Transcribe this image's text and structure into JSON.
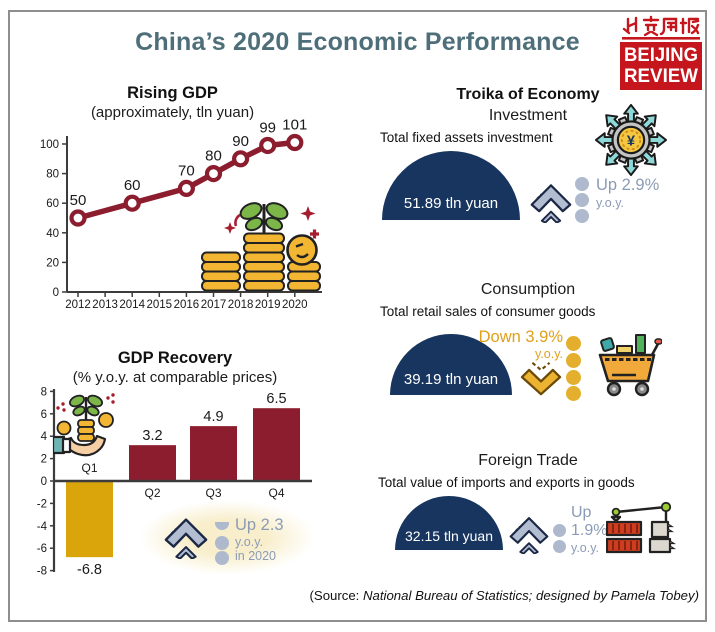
{
  "header": {
    "title": "China’s 2020 Economic Performance"
  },
  "logo": {
    "line1": "BEIJING",
    "line2": "REVIEW",
    "red": "#C4161C"
  },
  "chart_data": [
    {
      "id": "rising-gdp",
      "type": "line",
      "title": "Rising GDP",
      "subtitle": "(approximately, tln yuan)",
      "x": [
        "2012",
        "2013",
        "2014",
        "2015",
        "2016",
        "2017",
        "2018",
        "2019",
        "2020"
      ],
      "values": [
        50,
        55,
        60,
        65,
        70,
        80,
        90,
        99,
        101
      ],
      "point_labels": [
        "50",
        "",
        "60",
        "",
        "70",
        "80",
        "90",
        "99",
        "101"
      ],
      "markers": [
        true,
        false,
        true,
        false,
        true,
        true,
        true,
        true,
        true
      ],
      "ylim": [
        0,
        100
      ],
      "yticks": [
        100,
        80,
        60,
        40,
        20,
        0
      ],
      "line_color": "#8C1D2E",
      "marker_fill": "#FFFFFF",
      "grid": false
    },
    {
      "id": "gdp-recovery",
      "type": "bar",
      "title": "GDP Recovery",
      "subtitle": "(% y.o.y. at comparable prices)",
      "categories": [
        "Q1",
        "Q2",
        "Q3",
        "Q4"
      ],
      "values": [
        -6.8,
        3.2,
        4.9,
        6.5
      ],
      "value_labels": [
        "-6.8",
        "3.2",
        "4.9",
        "6.5"
      ],
      "bar_colors": [
        "#D9A50B",
        "#8C1D2E",
        "#8C1D2E",
        "#8C1D2E"
      ],
      "ylim": [
        -8,
        8
      ],
      "yticks": [
        8,
        6,
        4,
        2,
        0,
        -2,
        -4,
        -6,
        -8
      ],
      "grid": false,
      "annotation": {
        "line1": "Up 2.3",
        "line2": "y.o.y.",
        "line3": "in 2020"
      }
    }
  ],
  "troika": {
    "heading": "Troika of Economy",
    "sections": [
      {
        "name": "Investment",
        "desc": "Total fixed assets investment",
        "value": "51.89 tln yuan",
        "direction": "up",
        "change": "Up 2.9%",
        "change_sub": "y.o.y.",
        "icon": "gear-yuan-arrows-icon"
      },
      {
        "name": "Consumption",
        "desc": "Total retail sales of consumer goods",
        "value": "39.19 tln yuan",
        "direction": "down",
        "change": "Down 3.9%",
        "change_sub": "y.o.y.",
        "icon": "shopping-cart-icon"
      },
      {
        "name": "Foreign Trade",
        "desc": "Total value of imports and exports in goods",
        "value": "32.15 tln yuan",
        "direction": "up",
        "change": "Up",
        "change_pct": "1.9%",
        "change_sub": "y.o.y.",
        "icon": "crane-containers-icon"
      }
    ]
  },
  "source": {
    "prefix": "(Source: ",
    "text": "National Bureau of Statistics; designed by Pamela Tobey)"
  },
  "colors": {
    "maroon": "#8C1D2E",
    "gold": "#D9A50B",
    "navy": "#17355E",
    "title_slate": "#4E6E79",
    "gray_blue_text": "#8C9BB5",
    "gray_blue_fill": "#AEB9CE",
    "gold_text": "#DFA019",
    "logo_red": "#C4161C"
  }
}
